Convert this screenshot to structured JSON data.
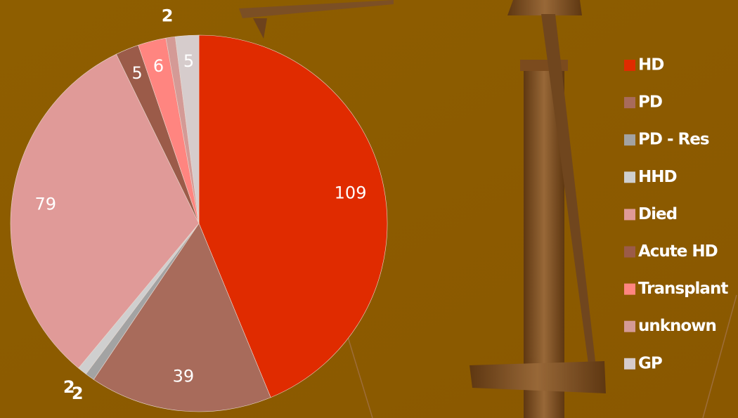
{
  "chart_data": {
    "type": "pie",
    "categories": [
      "HD",
      "PD",
      "PD - Res",
      "HHD",
      "Died",
      "Acute HD",
      "Transplant",
      "unknown",
      "GP"
    ],
    "values": [
      109,
      39,
      2,
      2,
      79,
      5,
      6,
      2,
      5
    ],
    "colors": [
      "#e02b00",
      "#a86b5b",
      "#a3a3a3",
      "#cfcfcf",
      "#e09a98",
      "#9b5b49",
      "#ff8580",
      "#d49a96",
      "#d6cccc"
    ],
    "legend": "right"
  }
}
